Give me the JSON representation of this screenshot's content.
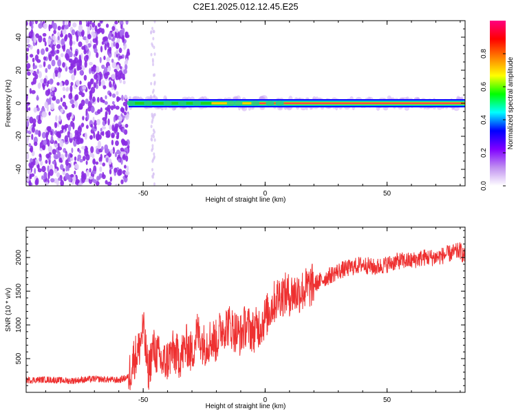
{
  "chart_data": [
    {
      "type": "heatmap",
      "title": "C2E1.2025.012.12.45.E25",
      "xlabel": "Height of straight line (km)",
      "ylabel": "Frequency (Hz)",
      "xlim": [
        -98,
        82
      ],
      "ylim": [
        -50,
        50
      ],
      "xticks": [
        "-50",
        "0",
        "50"
      ],
      "yticks": [
        "40",
        "20",
        "0",
        "-20",
        "-40"
      ],
      "grid": false,
      "colorbar": {
        "label": "Normalized spectral amplitude",
        "range": [
          0,
          1
        ],
        "ticks": [
          "0.0",
          "0.2",
          "0.4",
          "0.6",
          "0.8"
        ],
        "colors": [
          "#ffffff",
          "#c090f0",
          "#8000ff",
          "#0000ff",
          "#00ffff",
          "#00ff00",
          "#ffff00",
          "#ff8000",
          "#ff0000",
          "#ff0080"
        ]
      },
      "regions": [
        {
          "x_from": -98,
          "x_to": -56,
          "freq_from": -50,
          "freq_to": 50,
          "amplitude": 0.05,
          "pattern": "noise"
        },
        {
          "x_from": -56,
          "x_to": 82,
          "freq_from": -2,
          "freq_to": 2,
          "amplitude": 0.95,
          "pattern": "signal line at 0 Hz"
        }
      ]
    },
    {
      "type": "line",
      "title": "",
      "xlabel": "Height of straight line (km)",
      "ylabel": "SNR (10 * v/v)",
      "xlim": [
        -98,
        82
      ],
      "ylim": [
        0,
        2450
      ],
      "xticks": [
        "-50",
        "0",
        "50"
      ],
      "yticks": [
        "2000",
        "1500",
        "1000",
        "500"
      ],
      "grid": false,
      "color": "#ee3030",
      "series": [
        {
          "x": [
            -98,
            -90,
            -80,
            -70,
            -60,
            -56,
            -54,
            -52,
            -50,
            -48,
            -46,
            -44,
            -42,
            -40,
            -38,
            -35,
            -32,
            -30,
            -28,
            -25,
            -22,
            -20,
            -18,
            -15,
            -12,
            -10,
            -8,
            -5,
            -2,
            0,
            3,
            6,
            10,
            15,
            20,
            25,
            30,
            35,
            40,
            45,
            50,
            55,
            60,
            65,
            70,
            75,
            80,
            82
          ],
          "values": [
            180,
            190,
            170,
            200,
            180,
            230,
            500,
            600,
            950,
            300,
            650,
            550,
            420,
            480,
            600,
            520,
            700,
            560,
            900,
            700,
            800,
            750,
            950,
            1000,
            900,
            850,
            1000,
            900,
            1000,
            1100,
            1300,
            1450,
            1450,
            1500,
            1600,
            1700,
            1800,
            1850,
            1900,
            1850,
            1900,
            1950,
            1950,
            2000,
            2000,
            2050,
            2100,
            2000
          ],
          "noise": 130
        }
      ]
    }
  ]
}
